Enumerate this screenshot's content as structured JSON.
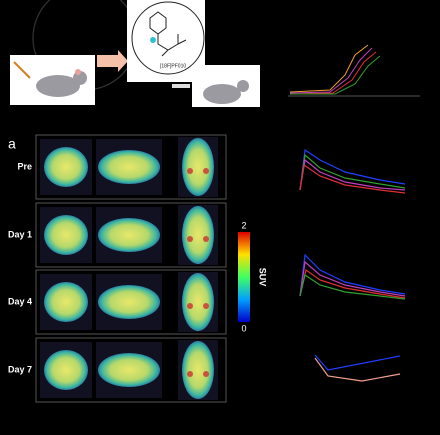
{
  "tracer_label": "[18F]PF010",
  "panel_label": "a",
  "rows": [
    {
      "label": "Pre"
    },
    {
      "label": "Day 1"
    },
    {
      "label": "Day 4"
    },
    {
      "label": "Day 7"
    }
  ],
  "colorbar": {
    "max": 2,
    "min": 0,
    "title": "SUV"
  }
}
